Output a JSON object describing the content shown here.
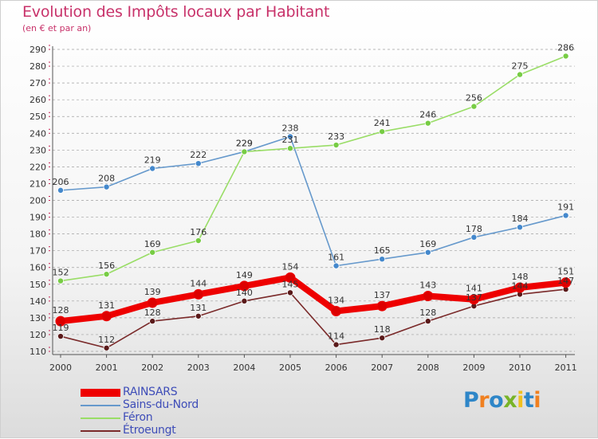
{
  "header": {
    "title": "Evolution des Impôts locaux par Habitant",
    "subtitle": "(en € et par an)"
  },
  "logo": {
    "text": "Proxiti",
    "letters": [
      "P",
      "r",
      "o",
      "x",
      "i",
      "t",
      "i"
    ],
    "letter_colors": [
      "#2e86c8",
      "#f08020",
      "#2e86c8",
      "#78b428",
      "#f0c020",
      "#2e86c8",
      "#f08020"
    ]
  },
  "colors": {
    "title": "#c8326a",
    "axis_text": "#333333",
    "grid": "#a0a0a0",
    "tick_marks": "#cc2255",
    "legend_text": "#3e4db8"
  },
  "chart_data": {
    "type": "line",
    "title": "Evolution des Impôts locaux par Habitant",
    "subtitle": "(en € et par an)",
    "xlabel": "",
    "ylabel": "",
    "x": [
      "2000",
      "2001",
      "2002",
      "2003",
      "2004",
      "2005",
      "2006",
      "2007",
      "2008",
      "2009",
      "2010",
      "2011"
    ],
    "ylim": [
      110,
      290
    ],
    "yticks": [
      110,
      120,
      130,
      140,
      150,
      160,
      170,
      180,
      190,
      200,
      210,
      220,
      230,
      240,
      250,
      260,
      270,
      280,
      290
    ],
    "grid": "dashed horizontal",
    "legend_position": "bottom-left",
    "series": [
      {
        "name": "RAINSARS",
        "values": [
          128,
          131,
          139,
          144,
          149,
          154,
          134,
          137,
          143,
          141,
          148,
          151
        ],
        "color": "#ee0000",
        "style": "bold"
      },
      {
        "name": "Sains-du-Nord",
        "values": [
          206,
          208,
          219,
          222,
          229,
          238,
          161,
          165,
          169,
          178,
          184,
          191
        ],
        "color": "#6699cc",
        "point_color": "#4488cc"
      },
      {
        "name": "Féron",
        "values": [
          152,
          156,
          169,
          176,
          229,
          231,
          233,
          241,
          246,
          256,
          275,
          286
        ],
        "color": "#99dd66",
        "point_color": "#77cc44"
      },
      {
        "name": "Étroeungt",
        "values": [
          119,
          112,
          128,
          131,
          140,
          145,
          114,
          118,
          128,
          137,
          144,
          147
        ],
        "color": "#7a2a2a",
        "point_color": "#5a1a1a"
      }
    ]
  }
}
